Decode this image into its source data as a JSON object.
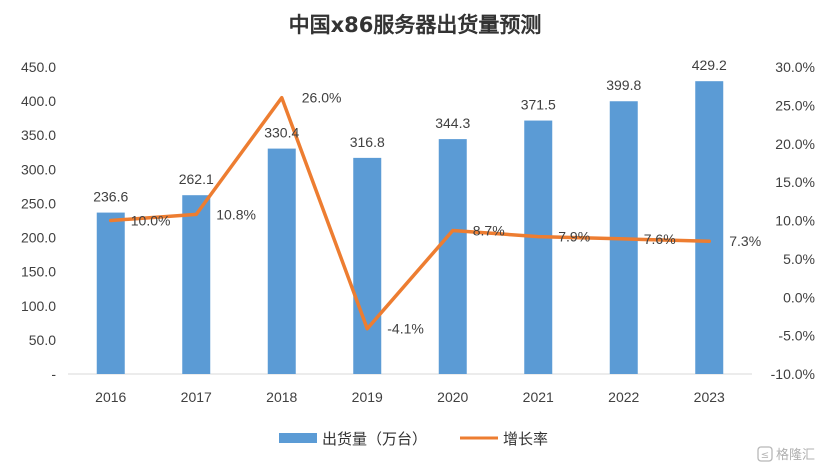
{
  "chart_data": {
    "type": "bar+line",
    "title": "中国x86服务器出货量预测",
    "categories": [
      "2016",
      "2017",
      "2018",
      "2019",
      "2020",
      "2021",
      "2022",
      "2023"
    ],
    "series": [
      {
        "name": "出货量（万台）",
        "type": "bar",
        "axis": "left",
        "color": "#5b9bd5",
        "values": [
          236.6,
          262.1,
          330.4,
          316.8,
          344.3,
          371.5,
          399.8,
          429.2
        ],
        "labels": [
          "236.6",
          "262.1",
          "330.4",
          "316.8",
          "344.3",
          "371.5",
          "399.8",
          "429.2"
        ]
      },
      {
        "name": "增长率",
        "type": "line",
        "axis": "right",
        "color": "#ed7d31",
        "values": [
          10.0,
          10.8,
          26.0,
          -4.1,
          8.7,
          7.9,
          7.6,
          7.3
        ],
        "labels": [
          "10.0%",
          "10.8%",
          "26.0%",
          "-4.1%",
          "8.7%",
          "7.9%",
          "7.6%",
          "7.3%"
        ]
      }
    ],
    "y_left": {
      "min": 0,
      "max": 450,
      "step": 50,
      "tick_labels": [
        "-",
        "50.0",
        "100.0",
        "150.0",
        "200.0",
        "250.0",
        "300.0",
        "350.0",
        "400.0",
        "450.0"
      ]
    },
    "y_right": {
      "min": -10,
      "max": 30,
      "step": 5,
      "tick_labels": [
        "-10.0%",
        "-5.0%",
        "0.0%",
        "5.0%",
        "10.0%",
        "15.0%",
        "20.0%",
        "25.0%",
        "30.0%"
      ]
    },
    "grid": false,
    "legend_position": "bottom"
  },
  "watermark": "格隆汇"
}
